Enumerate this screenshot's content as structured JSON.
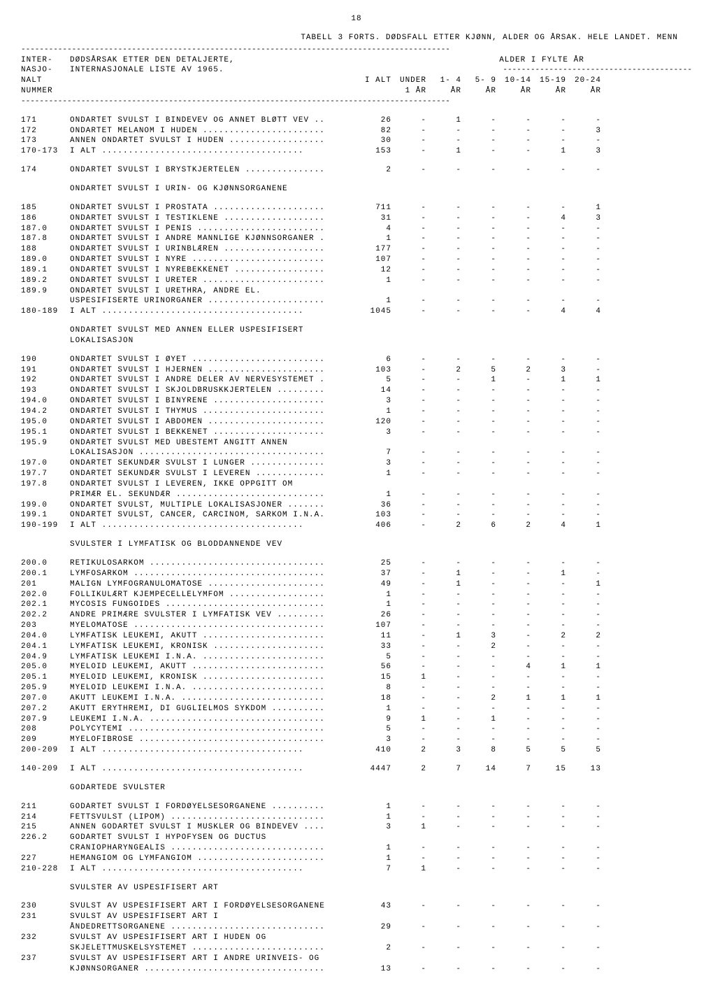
{
  "page_number": "18",
  "title": "TABELL 3 FORTS.  DØDSFALL ETTER KJØNN, ALDER OG ÅRSAK.  HELE LANDET.  MENN",
  "dashline": "---------------------------------------------------------------------------------------------",
  "header": {
    "left1": "INTER-",
    "left2": "NASJO-",
    "left3": "NALT",
    "left4": "NUMMER",
    "desc1": "DØDSÅRSAK ETTER DEN DETALJERTE,",
    "desc2": "INTERNASJONALE LISTE AV 1965.",
    "age_top": "ALDER I FYLTE ÅR",
    "age_dashes": "-----------------------------------------",
    "cols": {
      "ialt": "I ALT",
      "under1a": "UNDER",
      "under1b": "1 ÅR",
      "c14a": "1- 4",
      "c14b": "ÅR",
      "c59a": "5- 9",
      "c59b": "ÅR",
      "c1014a": "10-14",
      "c1014b": "ÅR",
      "c1519a": "15-19",
      "c1519b": "ÅR",
      "c2024a": "20-24",
      "c2024b": "ÅR"
    }
  },
  "sections": [
    {
      "rows": [
        {
          "code": "171",
          "desc": "ONDARTET SVULST I BINDEVEV OG ANNET BLØTT VEV ..",
          "v": [
            "26",
            "-",
            "1",
            "-",
            "-",
            "-",
            "-"
          ]
        },
        {
          "code": "172",
          "desc": "ONDARTET MELANOM I HUDEN .......................",
          "v": [
            "82",
            "-",
            "-",
            "-",
            "-",
            "-",
            "3"
          ]
        },
        {
          "code": "173",
          "desc": "ANNEN ONDARTET SVULST I HUDEN ..................",
          "v": [
            "30",
            "-",
            "-",
            "-",
            "-",
            "-",
            "-"
          ]
        },
        {
          "code": "170-173",
          "desc": "    I ALT ......................................",
          "v": [
            "153",
            "-",
            "1",
            "-",
            "-",
            "1",
            "3"
          ]
        }
      ]
    },
    {
      "rows": [
        {
          "code": "174",
          "desc": "ONDARTET SVULST I BRYSTKJERTELEN ...............",
          "v": [
            "2",
            "-",
            "-",
            "-",
            "-",
            "-",
            "-"
          ]
        }
      ]
    },
    {
      "heading": "ONDARTET SVULST I URIN- OG KJØNNSORGANENE",
      "rows": [
        {
          "code": "185",
          "desc": "ONDARTET SVULST I PROSTATA .....................",
          "v": [
            "711",
            "-",
            "-",
            "-",
            "-",
            "-",
            "1"
          ]
        },
        {
          "code": "186",
          "desc": "ONDARTET SVULST I TESTIKLENE ...................",
          "v": [
            "31",
            "-",
            "-",
            "-",
            "-",
            "4",
            "3"
          ]
        },
        {
          "code": "187.0",
          "desc": "ONDARTET SVULST I PENIS ........................",
          "v": [
            "4",
            "-",
            "-",
            "-",
            "-",
            "-",
            "-"
          ]
        },
        {
          "code": "187.8",
          "desc": "ONDARTET SVULST I ANDRE MANNLIGE KJØNNSORGANER .",
          "v": [
            "1",
            "-",
            "-",
            "-",
            "-",
            "-",
            "-"
          ]
        },
        {
          "code": "188",
          "desc": "ONDARTET SVULST I URINBLÆREN ...................",
          "v": [
            "177",
            "-",
            "-",
            "-",
            "-",
            "-",
            "-"
          ]
        },
        {
          "code": "189.0",
          "desc": "ONDARTET SVULST I NYRE .........................",
          "v": [
            "107",
            "-",
            "-",
            "-",
            "-",
            "-",
            "-"
          ]
        },
        {
          "code": "189.1",
          "desc": "ONDARTET SVULST I NYREBEKKENET .................",
          "v": [
            "12",
            "-",
            "-",
            "-",
            "-",
            "-",
            "-"
          ]
        },
        {
          "code": "189.2",
          "desc": "ONDARTET SVULST I URETER .......................",
          "v": [
            "1",
            "-",
            "-",
            "-",
            "-",
            "-",
            "-"
          ]
        },
        {
          "code": "189.9",
          "desc": "ONDARTET SVULST I URETHRA, ANDRE EL.",
          "v": [
            "",
            "",
            "",
            "",
            "",
            "",
            ""
          ]
        },
        {
          "code": "",
          "desc": "USPESIFISERTE URINORGANER ......................",
          "v": [
            "1",
            "-",
            "-",
            "-",
            "-",
            "-",
            "-"
          ]
        },
        {
          "code": "180-189",
          "desc": "    I ALT ......................................",
          "v": [
            "1045",
            "-",
            "-",
            "-",
            "-",
            "4",
            "4"
          ]
        }
      ]
    },
    {
      "heading": "ONDARTET SVULST MED ANNEN ELLER USPESIFISERT\nLOKALISASJON",
      "rows": [
        {
          "code": "190",
          "desc": "ONDARTET SVULST I ØYET .........................",
          "v": [
            "6",
            "-",
            "-",
            "-",
            "-",
            "-",
            "-"
          ]
        },
        {
          "code": "191",
          "desc": "ONDARTET SVULST I HJERNEN ......................",
          "v": [
            "103",
            "-",
            "2",
            "5",
            "2",
            "3",
            "-"
          ]
        },
        {
          "code": "192",
          "desc": "ONDARTET SVULST I ANDRE DELER AV NERVESYSTEMET .",
          "v": [
            "5",
            "-",
            "-",
            "1",
            "-",
            "1",
            "1"
          ]
        },
        {
          "code": "193",
          "desc": "ONDARTET SVULST I SKJOLDBRUSKKJERTELEN .........",
          "v": [
            "14",
            "-",
            "-",
            "-",
            "-",
            "-",
            "-"
          ]
        },
        {
          "code": "194.0",
          "desc": "ONDARTET SVULST I BINYRENE .....................",
          "v": [
            "3",
            "-",
            "-",
            "-",
            "-",
            "-",
            "-"
          ]
        },
        {
          "code": "194.2",
          "desc": "ONDARTET SVULST I THYMUS .......................",
          "v": [
            "1",
            "-",
            "-",
            "-",
            "-",
            "-",
            "-"
          ]
        },
        {
          "code": "195.0",
          "desc": "ONDARTET SVULST I ABDOMEN ......................",
          "v": [
            "120",
            "-",
            "-",
            "-",
            "-",
            "-",
            "-"
          ]
        },
        {
          "code": "195.1",
          "desc": "ONDARTET SVULST I BEKKENET .....................",
          "v": [
            "3",
            "-",
            "-",
            "-",
            "-",
            "-",
            "-"
          ]
        },
        {
          "code": "195.9",
          "desc": "ONDARTET SVULST MED UBESTEMT ANGITT ANNEN",
          "v": [
            "",
            "",
            "",
            "",
            "",
            "",
            ""
          ]
        },
        {
          "code": "",
          "desc": "LOKALISASJON ...................................",
          "v": [
            "7",
            "-",
            "-",
            "-",
            "-",
            "-",
            "-"
          ]
        },
        {
          "code": "197.0",
          "desc": "ONDARTET SEKUNDÆR SVULST I LUNGER ..............",
          "v": [
            "3",
            "-",
            "-",
            "-",
            "-",
            "-",
            "-"
          ]
        },
        {
          "code": "197.7",
          "desc": "ONDARTET SEKUNDÆR SVULST I LEVEREN .............",
          "v": [
            "1",
            "-",
            "-",
            "-",
            "-",
            "-",
            "-"
          ]
        },
        {
          "code": "197.8",
          "desc": "ONDARTET SVULST I LEVEREN, IKKE OPPGITT OM",
          "v": [
            "",
            "",
            "",
            "",
            "",
            "",
            ""
          ]
        },
        {
          "code": "",
          "desc": "PRIMÆR EL. SEKUNDÆR ............................",
          "v": [
            "1",
            "-",
            "-",
            "-",
            "-",
            "-",
            "-"
          ]
        },
        {
          "code": "199.0",
          "desc": "ONDARTET SVULST, MULTIPLE LOKALISASJONER .......",
          "v": [
            "36",
            "-",
            "-",
            "-",
            "-",
            "-",
            "-"
          ]
        },
        {
          "code": "199.1",
          "desc": "ONDARTET SVULST, CANCER, CARCINOM, SARKOM I.N.A.",
          "v": [
            "103",
            "-",
            "-",
            "-",
            "-",
            "-",
            "-"
          ]
        },
        {
          "code": "190-199",
          "desc": "    I ALT ......................................",
          "v": [
            "406",
            "-",
            "2",
            "6",
            "2",
            "4",
            "1"
          ]
        }
      ]
    },
    {
      "heading": "SVULSTER I LYMFATISK OG BLODDANNENDE VEV",
      "rows": [
        {
          "code": "200.0",
          "desc": "RETIKULOSARKOM .................................",
          "v": [
            "25",
            "-",
            "-",
            "-",
            "-",
            "-",
            "-"
          ]
        },
        {
          "code": "200.1",
          "desc": "LYMFOSARKOM ....................................",
          "v": [
            "37",
            "-",
            "1",
            "-",
            "-",
            "1",
            "-"
          ]
        },
        {
          "code": "201",
          "desc": "MALIGN LYMFOGRANULOMATOSE ......................",
          "v": [
            "49",
            "-",
            "1",
            "-",
            "-",
            "-",
            "1"
          ]
        },
        {
          "code": "202.0",
          "desc": "FOLLIKULÆRT KJEMPECELLELYMFOM ..................",
          "v": [
            "1",
            "-",
            "-",
            "-",
            "-",
            "-",
            "-"
          ]
        },
        {
          "code": "202.1",
          "desc": "MYCOSIS FUNGOIDES ..............................",
          "v": [
            "1",
            "-",
            "-",
            "-",
            "-",
            "-",
            "-"
          ]
        },
        {
          "code": "202.2",
          "desc": "ANDRE PRIMÆRE SVULSTER I LYMFATISK VEV .........",
          "v": [
            "26",
            "-",
            "-",
            "-",
            "-",
            "-",
            "-"
          ]
        },
        {
          "code": "203",
          "desc": "MYELOMATOSE ....................................",
          "v": [
            "107",
            "-",
            "-",
            "-",
            "-",
            "-",
            "-"
          ]
        },
        {
          "code": "204.0",
          "desc": "LYMFATISK LEUKEMI, AKUTT .......................",
          "v": [
            "11",
            "-",
            "1",
            "3",
            "-",
            "2",
            "2"
          ]
        },
        {
          "code": "204.1",
          "desc": "LYMFATISK LEUKEMI, KRONISK .....................",
          "v": [
            "33",
            "-",
            "-",
            "2",
            "-",
            "-",
            "-"
          ]
        },
        {
          "code": "204.9",
          "desc": "LYMFATISK LEUKEMI I.N.A. .......................",
          "v": [
            "5",
            "-",
            "-",
            "-",
            "-",
            "-",
            "-"
          ]
        },
        {
          "code": "205.0",
          "desc": "MYELOID LEUKEMI, AKUTT .........................",
          "v": [
            "56",
            "-",
            "-",
            "-",
            "4",
            "1",
            "1"
          ]
        },
        {
          "code": "205.1",
          "desc": "MYELOID LEUKEMI, KRONISK .......................",
          "v": [
            "15",
            "1",
            "-",
            "-",
            "-",
            "-",
            "-"
          ]
        },
        {
          "code": "205.9",
          "desc": "MYELOID LEUKEMI I.N.A. .........................",
          "v": [
            "8",
            "-",
            "-",
            "-",
            "-",
            "-",
            "-"
          ]
        },
        {
          "code": "207.0",
          "desc": "AKUTT LEUKEMI I.N.A. ...........................",
          "v": [
            "18",
            "-",
            "-",
            "2",
            "1",
            "1",
            "1"
          ]
        },
        {
          "code": "207.2",
          "desc": "AKUTT ERYTHREMI, DI GUGLIELMOS SYKDOM ..........",
          "v": [
            "1",
            "-",
            "-",
            "-",
            "-",
            "-",
            "-"
          ]
        },
        {
          "code": "207.9",
          "desc": "LEUKEMI I.N.A. .................................",
          "v": [
            "9",
            "1",
            "-",
            "1",
            "-",
            "-",
            "-"
          ]
        },
        {
          "code": "208",
          "desc": "POLYCYTEMI .....................................",
          "v": [
            "5",
            "-",
            "-",
            "-",
            "-",
            "-",
            "-"
          ]
        },
        {
          "code": "209",
          "desc": "MYELOFIBROSE ...................................",
          "v": [
            "3",
            "-",
            "-",
            "-",
            "-",
            "-",
            "-"
          ]
        },
        {
          "code": "200-209",
          "desc": "    I ALT ......................................",
          "v": [
            "410",
            "2",
            "3",
            "8",
            "5",
            "5",
            "5"
          ]
        }
      ]
    },
    {
      "rows": [
        {
          "code": "140-209",
          "desc": "    I ALT ......................................",
          "v": [
            "4447",
            "2",
            "7",
            "14",
            "7",
            "15",
            "13"
          ]
        }
      ]
    },
    {
      "heading": "GODARTEDE SVULSTER",
      "rows": [
        {
          "code": "211",
          "desc": "GODARTET SVULST I FORDØYELSESORGANENE ..........",
          "v": [
            "1",
            "-",
            "-",
            "-",
            "-",
            "-",
            "-"
          ]
        },
        {
          "code": "214",
          "desc": "FETTSVULST (LIPOM) .............................",
          "v": [
            "1",
            "-",
            "-",
            "-",
            "-",
            "-",
            "-"
          ]
        },
        {
          "code": "215",
          "desc": "ANNEN GODARTET SVULST I MUSKLER OG BINDEVEV ....",
          "v": [
            "3",
            "1",
            "-",
            "-",
            "-",
            "-",
            "-"
          ]
        },
        {
          "code": "226.2",
          "desc": "GODARTET SVULST I HYPOFYSEN OG DUCTUS",
          "v": [
            "",
            "",
            "",
            "",
            "",
            "",
            ""
          ]
        },
        {
          "code": "",
          "desc": "CRANIOPHARYNGEALIS .............................",
          "v": [
            "1",
            "-",
            "-",
            "-",
            "-",
            "-",
            "-"
          ]
        },
        {
          "code": "227",
          "desc": "HEMANGIOM OG LYMFANGIOM ........................",
          "v": [
            "1",
            "-",
            "-",
            "-",
            "-",
            "-",
            "-"
          ]
        },
        {
          "code": "210-228",
          "desc": "    I ALT ......................................",
          "v": [
            "7",
            "1",
            "-",
            "-",
            "-",
            "-",
            "-"
          ]
        }
      ]
    },
    {
      "heading": "SVULSTER AV USPESIFISERT ART",
      "rows": [
        {
          "code": "230",
          "desc": "SVULST AV USPESIFISERT ART I FORDØYELSESORGANENE",
          "v": [
            "43",
            "-",
            "-",
            "-",
            "-",
            "-",
            "-"
          ]
        },
        {
          "code": "231",
          "desc": "SVULST AV USPESIFISERT ART I",
          "v": [
            "",
            "",
            "",
            "",
            "",
            "",
            ""
          ]
        },
        {
          "code": "",
          "desc": "ÅNDEDRETTSORGANENE .............................",
          "v": [
            "29",
            "-",
            "-",
            "-",
            "-",
            "-",
            "-"
          ]
        },
        {
          "code": "232",
          "desc": "SVULST AV USPESIFISERT ART I HUDEN OG",
          "v": [
            "",
            "",
            "",
            "",
            "",
            "",
            ""
          ]
        },
        {
          "code": "",
          "desc": "SKJELETTMUSKELSYSTEMET .........................",
          "v": [
            "2",
            "-",
            "-",
            "-",
            "-",
            "-",
            "-"
          ]
        },
        {
          "code": "237",
          "desc": "SVULST AV USPESIFISERT ART I ANDRE URINVEIS- OG",
          "v": [
            "",
            "",
            "",
            "",
            "",
            "",
            ""
          ]
        },
        {
          "code": "",
          "desc": "KJØNNSORGANER ..................................",
          "v": [
            "13",
            "-",
            "-",
            "-",
            "-",
            "-",
            "-"
          ]
        }
      ]
    }
  ]
}
